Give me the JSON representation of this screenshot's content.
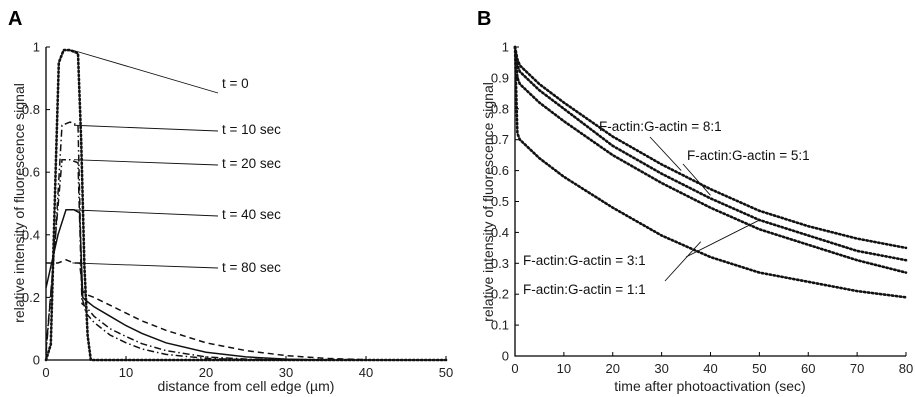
{
  "chart_data": [
    {
      "panel_label": "A",
      "type": "line",
      "xlabel": "distance from cell edge (µm)",
      "ylabel": "relative intensity of fluorescence signal",
      "xlim": [
        0,
        50
      ],
      "ylim": [
        0,
        1
      ],
      "xticks": [
        0,
        10,
        20,
        30,
        40,
        50
      ],
      "yticks": [
        0,
        0.2,
        0.4,
        0.6,
        0.8,
        1
      ],
      "grid": false,
      "series": [
        {
          "name": "t = 0",
          "style": "dotted",
          "x": [
            0,
            0.6,
            1.2,
            1.6,
            2.2,
            3.0,
            4.0,
            4.4,
            4.8,
            5.2,
            5.6,
            50
          ],
          "y": [
            0,
            0.05,
            0.6,
            0.95,
            0.99,
            0.99,
            0.98,
            0.7,
            0.3,
            0.08,
            0,
            0
          ]
        },
        {
          "name": "t = 10 sec",
          "style": "dashdot",
          "x": [
            0,
            1.2,
            2.0,
            3.0,
            4.0,
            4.5,
            5,
            6,
            8,
            10,
            12,
            15,
            20,
            25,
            30
          ],
          "y": [
            0.02,
            0.4,
            0.75,
            0.76,
            0.75,
            0.2,
            0.15,
            0.12,
            0.08,
            0.055,
            0.035,
            0.018,
            0.005,
            0.001,
            0
          ]
        },
        {
          "name": "t = 20 sec",
          "style": "dashdot",
          "x": [
            0,
            1.2,
            2.0,
            3.0,
            4.0,
            4.5,
            5,
            6,
            8,
            10,
            12,
            15,
            20,
            25,
            30
          ],
          "y": [
            0.03,
            0.4,
            0.64,
            0.64,
            0.63,
            0.18,
            0.17,
            0.14,
            0.1,
            0.075,
            0.052,
            0.03,
            0.01,
            0.003,
            0
          ]
        },
        {
          "name": "t = 40 sec",
          "style": "solid",
          "x": [
            0,
            1.5,
            2.5,
            3.5,
            4.2,
            4.6,
            5,
            6,
            8,
            10,
            12,
            15,
            20,
            25,
            30,
            35
          ],
          "y": [
            0.23,
            0.4,
            0.48,
            0.48,
            0.47,
            0.2,
            0.19,
            0.17,
            0.14,
            0.11,
            0.085,
            0.055,
            0.025,
            0.01,
            0.003,
            0
          ]
        },
        {
          "name": "t = 80 sec",
          "style": "dashed",
          "x": [
            0,
            1.5,
            2.5,
            3.5,
            4.2,
            4.6,
            5,
            6,
            8,
            10,
            12,
            15,
            20,
            25,
            30,
            35,
            40
          ],
          "y": [
            0.31,
            0.31,
            0.32,
            0.31,
            0.31,
            0.22,
            0.21,
            0.2,
            0.175,
            0.15,
            0.125,
            0.095,
            0.055,
            0.03,
            0.014,
            0.005,
            0.001
          ]
        }
      ],
      "annotations": [
        {
          "text": "t = 0",
          "target_x": 3.3,
          "target_y": 0.99
        },
        {
          "text": "t = 10 sec",
          "target_x": 3.5,
          "target_y": 0.75
        },
        {
          "text": "t = 20 sec",
          "target_x": 3.5,
          "target_y": 0.64
        },
        {
          "text": "t = 40 sec",
          "target_x": 3.0,
          "target_y": 0.48
        },
        {
          "text": "t = 80 sec",
          "target_x": 3.3,
          "target_y": 0.31
        }
      ]
    },
    {
      "panel_label": "B",
      "type": "line",
      "xlabel": "time after photoactivation (sec)",
      "ylabel": "relative intensity of fluorescence signal",
      "xlim": [
        0,
        80
      ],
      "ylim": [
        0,
        1
      ],
      "xticks": [
        0,
        10,
        20,
        30,
        40,
        50,
        60,
        70,
        80
      ],
      "yticks": [
        0,
        0.1,
        0.2,
        0.3,
        0.4,
        0.5,
        0.6,
        0.7,
        0.8,
        0.9,
        1
      ],
      "grid": false,
      "series": [
        {
          "name": "F-actin:G-actin = 8:1",
          "style": "dotted",
          "x": [
            0,
            0.5,
            1,
            5,
            10,
            20,
            30,
            40,
            50,
            60,
            70,
            80
          ],
          "y": [
            1.0,
            0.96,
            0.94,
            0.88,
            0.82,
            0.71,
            0.62,
            0.54,
            0.47,
            0.42,
            0.38,
            0.35
          ]
        },
        {
          "name": "F-actin:G-actin = 5:1",
          "style": "dotted",
          "x": [
            0,
            0.5,
            1,
            5,
            10,
            20,
            30,
            40,
            50,
            60,
            70,
            80
          ],
          "y": [
            1.0,
            0.94,
            0.92,
            0.86,
            0.8,
            0.68,
            0.59,
            0.51,
            0.44,
            0.39,
            0.34,
            0.31
          ]
        },
        {
          "name": "F-actin:G-actin = 3:1",
          "style": "dotted",
          "x": [
            0,
            0.5,
            1,
            5,
            10,
            20,
            30,
            40,
            50,
            60,
            70,
            80
          ],
          "y": [
            1.0,
            0.9,
            0.88,
            0.82,
            0.76,
            0.65,
            0.56,
            0.48,
            0.41,
            0.36,
            0.31,
            0.27
          ]
        },
        {
          "name": "F-actin:G-actin = 1:1",
          "style": "dotted",
          "x": [
            0,
            0.5,
            1,
            5,
            10,
            20,
            30,
            40,
            50,
            60,
            70,
            80
          ],
          "y": [
            1.0,
            0.72,
            0.7,
            0.64,
            0.58,
            0.48,
            0.39,
            0.32,
            0.27,
            0.24,
            0.21,
            0.19
          ]
        }
      ],
      "annotations": [
        {
          "text": "F-actin:G-actin = 8:1",
          "target_x": 34,
          "target_y": 0.6
        },
        {
          "text": "F-actin:G-actin = 5:1",
          "target_x": 40,
          "target_y": 0.52
        },
        {
          "text": "F-actin:G-actin = 3:1",
          "target_x": 50,
          "target_y": 0.44
        },
        {
          "text": "F-actin:G-actin = 1:1",
          "target_x": 38,
          "target_y": 0.37
        }
      ]
    }
  ]
}
